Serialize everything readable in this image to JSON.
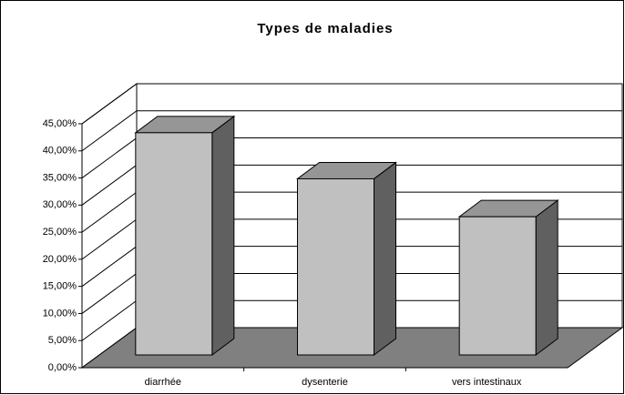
{
  "chart_data": {
    "type": "bar3d",
    "title": "Types de maladies",
    "categories": [
      "diarrhée",
      "dysenterie",
      "vers intestinaux"
    ],
    "values": [
      41,
      32.5,
      25.5
    ],
    "color": "#c0c0c0",
    "ylim": [
      0,
      45
    ],
    "yticks": [
      {
        "value": 0,
        "label": "0,00%"
      },
      {
        "value": 5,
        "label": "5,00%"
      },
      {
        "value": 10,
        "label": "10,00%"
      },
      {
        "value": 15,
        "label": "15,00%"
      },
      {
        "value": 20,
        "label": "20,00%"
      },
      {
        "value": 25,
        "label": "25,00%"
      },
      {
        "value": 30,
        "label": "30,00%"
      },
      {
        "value": 35,
        "label": "35,00%"
      },
      {
        "value": 40,
        "label": "40,00%"
      },
      {
        "value": 45,
        "label": "45,00%"
      }
    ],
    "grid": true
  }
}
